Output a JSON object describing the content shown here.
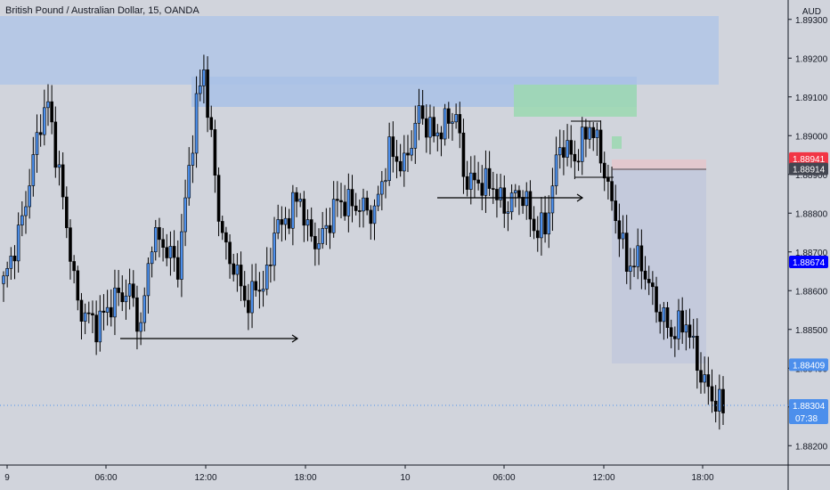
{
  "chart_data": {
    "type": "candlestick",
    "title": "British Pound / Australian Dollar, 15, OANDA",
    "ylabel": "AUD",
    "ylim": [
      1.8815,
      1.8935
    ],
    "y_ticks": [
      "1.88200",
      "1.88300",
      "1.88400",
      "1.88500",
      "1.88600",
      "1.88700",
      "1.88800",
      "1.88900",
      "1.89000",
      "1.89100",
      "1.89200",
      "1.89300"
    ],
    "x_ticks": [
      "9",
      "06:00",
      "12:00",
      "18:00",
      "10",
      "06:00",
      "12:00",
      "18:00"
    ],
    "bars": 195,
    "series": [
      {
        "anchors_idx": [
          0,
          2,
          5,
          10,
          12,
          15,
          18,
          20,
          25,
          30,
          34,
          37,
          40,
          43,
          47,
          52,
          54,
          58,
          61,
          62,
          65,
          70,
          72,
          73,
          75,
          78,
          80,
          82,
          85,
          90,
          95,
          100,
          104,
          108,
          112,
          116,
          120,
          122,
          124,
          126,
          128,
          132,
          135,
          137,
          140,
          143,
          146,
          150,
          152,
          154,
          156,
          158,
          160,
          162,
          164,
          166,
          168,
          170,
          172,
          176,
          180,
          184,
          188,
          192,
          194
        ],
        "anchors_close": [
          1.8862,
          1.8868,
          1.8878,
          1.8904,
          1.8908,
          1.889,
          1.887,
          1.8856,
          1.8851,
          1.8858,
          1.886,
          1.885,
          1.8874,
          1.8872,
          1.8866,
          1.8908,
          1.8917,
          1.888,
          1.8866,
          1.8868,
          1.8857,
          1.8862,
          1.8866,
          1.8878,
          1.8876,
          1.8882,
          1.8884,
          1.8875,
          1.8872,
          1.8883,
          1.8882,
          1.888,
          1.8896,
          1.8892,
          1.8906,
          1.89,
          1.8904,
          1.8906,
          1.889,
          1.8888,
          1.8888,
          1.8887,
          1.8881,
          1.8884,
          1.8885,
          1.8876,
          1.8876,
          1.8898,
          1.8896,
          1.8894,
          1.8898,
          1.8903,
          1.8898,
          1.8891,
          1.8882,
          1.8876,
          1.8866,
          1.8868,
          1.8867,
          1.8856,
          1.8849,
          1.8852,
          1.8838,
          1.8831,
          1.883
        ]
      }
    ],
    "price_labels": [
      {
        "text": "1.88941",
        "color": "#f23645"
      },
      {
        "text": "1.88914",
        "color": "#434651"
      },
      {
        "text": "1.88674",
        "color": "#0000ff"
      },
      {
        "text": "1.88409",
        "color": "#4c8fec"
      },
      {
        "text": "1.88304",
        "color": "#4c8fec"
      }
    ],
    "countdown": "07:38",
    "colors": {
      "up": "#4c8fec",
      "down": "#000000",
      "bg": "#d1d4dc"
    }
  }
}
